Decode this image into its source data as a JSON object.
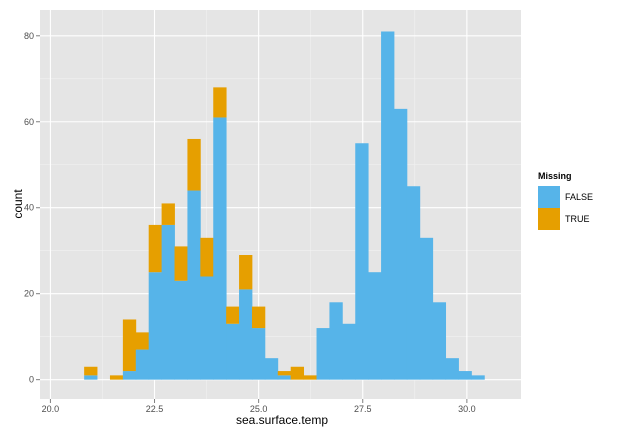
{
  "chart_data": {
    "type": "bar",
    "stacked": true,
    "xlabel": "sea.surface.temp",
    "ylabel": "count",
    "xlim": [
      19.75,
      31.3
    ],
    "ylim": [
      -4.5,
      86
    ],
    "x_ticks": [
      20.0,
      22.5,
      25.0,
      27.5,
      30.0
    ],
    "x_tick_labels": [
      "20.0",
      "22.5",
      "25.0",
      "27.5",
      "30.0"
    ],
    "y_ticks": [
      0,
      20,
      40,
      60,
      80
    ],
    "y_tick_labels": [
      "0",
      "20",
      "40",
      "60",
      "80"
    ],
    "grid": true,
    "legend_title": "Missing",
    "legend_position": "right",
    "bin_width": 0.31,
    "bin_starts": [
      20.81,
      21.12,
      21.43,
      21.74,
      22.05,
      22.36,
      22.67,
      22.98,
      23.29,
      23.6,
      23.91,
      24.22,
      24.53,
      24.84,
      25.15,
      25.46,
      25.77,
      26.08,
      26.39,
      26.7,
      27.01,
      27.32,
      27.63,
      27.94,
      28.25,
      28.56,
      28.87,
      29.18,
      29.49,
      29.8,
      30.11,
      30.42
    ],
    "series": [
      {
        "name": "FALSE",
        "color": "#56B4E9",
        "values": [
          1,
          0,
          0,
          2,
          7,
          25,
          36,
          23,
          44,
          24,
          61,
          13,
          21,
          12,
          5,
          1,
          0,
          0,
          12,
          18,
          13,
          55,
          25,
          81,
          63,
          45,
          33,
          18,
          5,
          2,
          1,
          0
        ]
      },
      {
        "name": "TRUE",
        "color": "#E69F00",
        "values": [
          2,
          0,
          1,
          12,
          4,
          11,
          5,
          8,
          12,
          9,
          7,
          4,
          8,
          5,
          0,
          1,
          3,
          1,
          0,
          0,
          0,
          0,
          0,
          0,
          0,
          0,
          0,
          0,
          0,
          0,
          0,
          0
        ]
      }
    ]
  },
  "style": {
    "panel_background": "#E5E5E5",
    "major_grid": "#FFFFFF",
    "minor_grid": "#F2F2F2",
    "tick_text_color": "#4D4D4D"
  }
}
